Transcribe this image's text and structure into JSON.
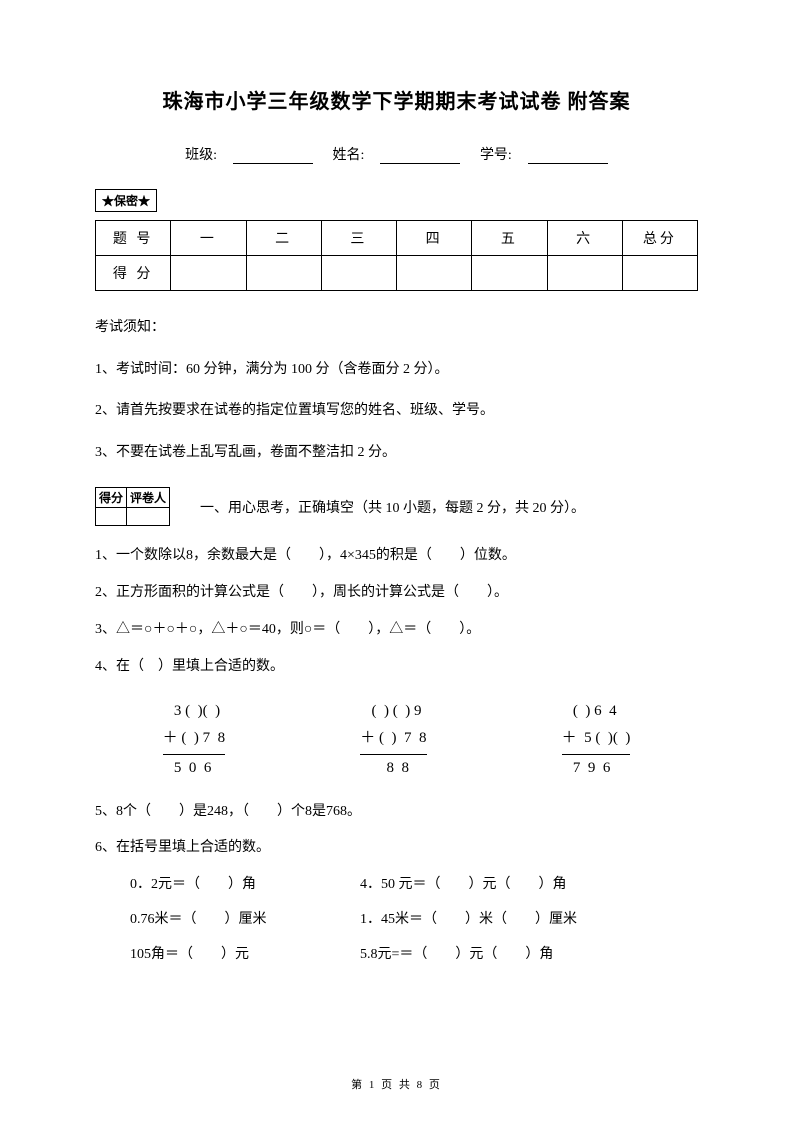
{
  "title": "珠海市小学三年级数学下学期期末考试试卷 附答案",
  "info": {
    "class_label": "班级:",
    "name_label": "姓名:",
    "id_label": "学号:"
  },
  "stamp": "★保密★",
  "score_table": {
    "row1": [
      "题 号",
      "一",
      "二",
      "三",
      "四",
      "五",
      "六",
      "总分"
    ],
    "row2_label": "得 分"
  },
  "instructions": {
    "header": "考试须知：",
    "line1": "1、考试时间：60 分钟，满分为 100 分（含卷面分 2 分）。",
    "line2": "2、请首先按要求在试卷的指定位置填写您的姓名、班级、学号。",
    "line3": "3、不要在试卷上乱写乱画，卷面不整洁扣 2 分。"
  },
  "small_table": {
    "c1": "得分",
    "c2": "评卷人"
  },
  "section1_title": "一、用心思考，正确填空（共 10 小题，每题 2 分，共 20 分）。",
  "q1": "1、一个数除以8，余数最大是（　　），4×345的积是（　　）位数。",
  "q2": "2、正方形面积的计算公式是（　　），周长的计算公式是（　　）。",
  "q3": "3、△＝○＋○＋○，△＋○＝40，则○＝（　　），△＝（　　）。",
  "q4": "4、在（　）里填上合适的数。",
  "arith": {
    "a1_l1": "   3 (  )(  )",
    "a1_l2": "＋ (  ) 7  8",
    "a1_l3": "   5  0  6",
    "a2_l1": "   (  ) (  ) 9",
    "a2_l2": "＋ (  )  7  8",
    "a2_l3": "       8  8",
    "a3_l1": "   (  ) 6  4",
    "a3_l2": "＋  5 (  )(  )",
    "a3_l3": "   7  9  6"
  },
  "q5": "5、8个（　　）是248，（　　）个8是768。",
  "q6": "6、在括号里填上合适的数。",
  "conversions": {
    "r1c1": "0．2元＝（　　）角",
    "r1c2": "4．50 元＝（　　）元（　　）角",
    "r2c1": "0.76米＝（　　）厘米",
    "r2c2": "1．45米＝（　　）米（　　）厘米",
    "r3c1": "105角＝（　　）元",
    "r3c2": "5.8元=＝（　　）元（　　）角"
  },
  "footer": "第 1 页 共 8 页"
}
